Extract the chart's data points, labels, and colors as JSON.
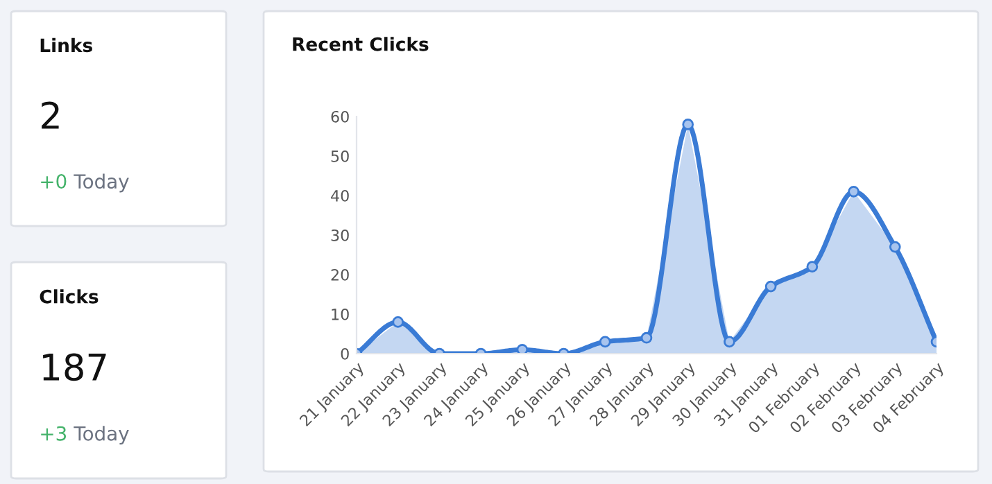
{
  "chart_data": [
    {
      "type": "other",
      "title": "Links",
      "annotations": [
        "2",
        "+0",
        "Today"
      ]
    },
    {
      "type": "other",
      "title": "Clicks",
      "annotations": [
        "187",
        "+3",
        "Today"
      ]
    },
    {
      "type": "area",
      "title": "Recent Clicks",
      "categories": [
        "21 January",
        "22 January",
        "23 January",
        "24 January",
        "25 January",
        "26 January",
        "27 January",
        "28 January",
        "29 January",
        "30 January",
        "31 January",
        "01 February",
        "02 February",
        "03 February",
        "04 February"
      ],
      "series": [
        {
          "color": "#3a7bd5",
          "values": [
            0,
            8,
            0,
            0,
            1,
            0,
            3,
            4,
            58,
            3,
            17,
            22,
            41,
            27,
            3
          ]
        }
      ],
      "ylim": [
        0,
        60
      ],
      "yticks": [
        0,
        10,
        20,
        30,
        40,
        50,
        60
      ],
      "marker": "circle",
      "line_style": "solid"
    }
  ]
}
